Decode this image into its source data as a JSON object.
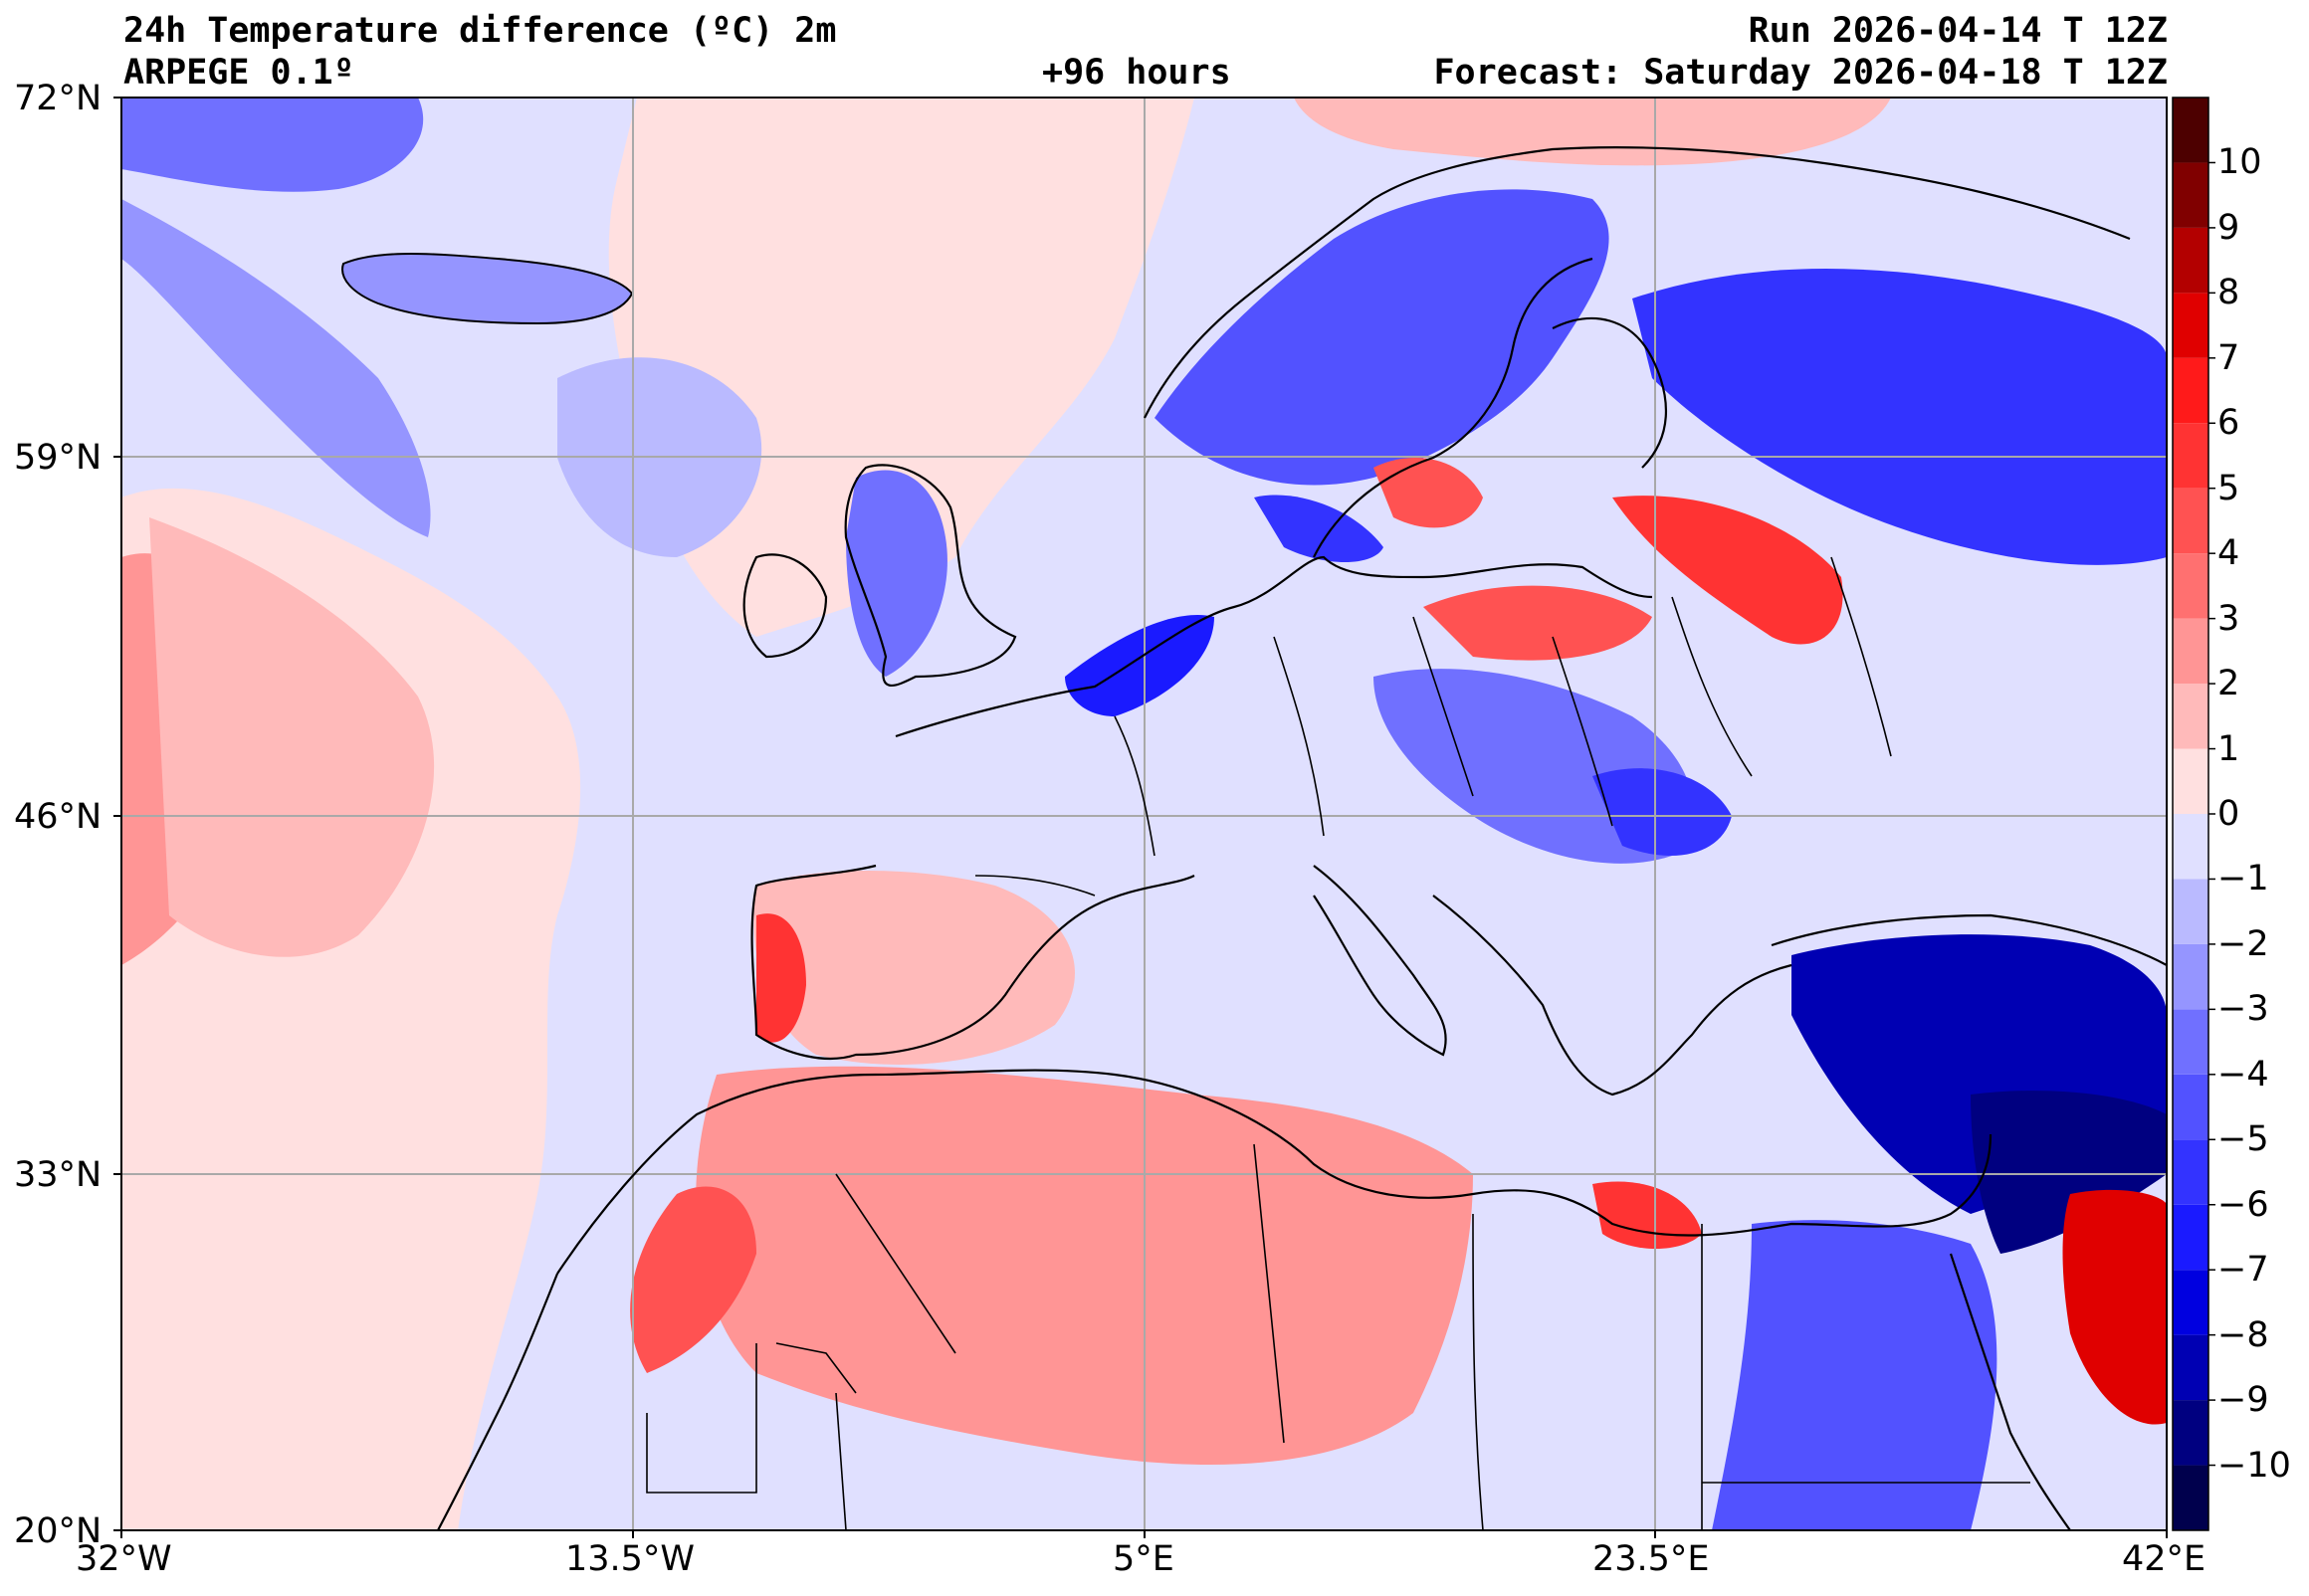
{
  "header": {
    "title": "24h Temperature difference (ºC) 2m",
    "model": "ARPEGE 0.1º",
    "lead_time": "+96 hours",
    "run": "Run 2026-04-14 T 12Z",
    "forecast": "Forecast: Saturday 2026-04-18 T 12Z"
  },
  "axes": {
    "lat_labels": [
      "72°N",
      "59°N",
      "46°N",
      "33°N",
      "20°N"
    ],
    "lon_labels": [
      "32°W",
      "13.5°W",
      "5°E",
      "23.5°E",
      "42°E"
    ],
    "lat_range": [
      20,
      72
    ],
    "lon_range": [
      -32,
      42
    ],
    "grid": true
  },
  "colorbar": {
    "ticks": [
      "10",
      "9",
      "8",
      "7",
      "6",
      "5",
      "4",
      "3",
      "2",
      "1",
      "0",
      "−1",
      "−2",
      "−3",
      "−4",
      "−5",
      "−6",
      "−7",
      "−8",
      "−9",
      "−10"
    ],
    "range": [
      -11,
      11
    ],
    "colors": [
      "#00004d",
      "#000080",
      "#0000b3",
      "#0000e0",
      "#1a1aff",
      "#3333ff",
      "#5252ff",
      "#7070ff",
      "#9595ff",
      "#babaff",
      "#e0e0ff",
      "#ffe0e0",
      "#ffbaba",
      "#ff9595",
      "#ff7070",
      "#ff5252",
      "#ff3333",
      "#ff1a1a",
      "#e00000",
      "#b30000",
      "#800000",
      "#4d0000"
    ]
  },
  "colors": {
    "warm": "#ff7070",
    "cold": "#5252ff",
    "neutral_warm": "#ffe0e0",
    "neutral_cold": "#e0e0ff",
    "coast": "#000000",
    "grid": "#a9a9a9"
  }
}
